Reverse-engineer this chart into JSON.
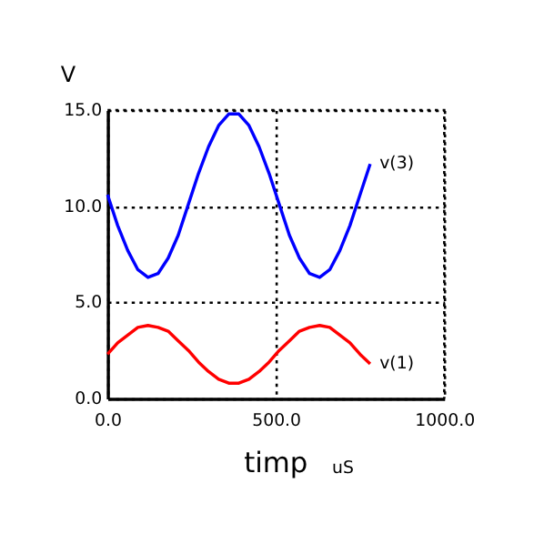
{
  "chart_data": {
    "type": "line",
    "x": [
      0,
      30,
      60,
      90,
      120,
      150,
      180,
      210,
      240,
      270,
      300,
      330,
      360,
      390,
      420,
      450,
      480,
      510,
      540,
      570,
      600,
      630,
      660,
      690,
      720,
      750,
      780
    ],
    "series": [
      {
        "name": "v(3)",
        "color": "#0000ff",
        "values": [
          10.6,
          9.0,
          7.7,
          6.7,
          6.3,
          6.5,
          7.3,
          8.5,
          10.1,
          11.7,
          13.1,
          14.2,
          14.8,
          14.8,
          14.2,
          13.1,
          11.7,
          10.1,
          8.5,
          7.3,
          6.5,
          6.3,
          6.7,
          7.7,
          9.0,
          10.6,
          12.2
        ]
      },
      {
        "name": "v(1)",
        "color": "#ff0000",
        "values": [
          2.3,
          2.9,
          3.3,
          3.7,
          3.8,
          3.7,
          3.5,
          3.0,
          2.5,
          1.9,
          1.4,
          1.0,
          0.8,
          0.8,
          1.0,
          1.4,
          1.9,
          2.5,
          3.0,
          3.5,
          3.7,
          3.8,
          3.7,
          3.3,
          2.9,
          2.3,
          1.8
        ]
      }
    ],
    "xlabel": "timp",
    "ylabel": "V",
    "annotations": [
      "uS"
    ],
    "xlim": [
      0,
      1000
    ],
    "xticks": [
      {
        "value": 0,
        "label": "0.0"
      },
      {
        "value": 500,
        "label": "500.0"
      },
      {
        "value": 1000,
        "label": "1000.0"
      }
    ],
    "ylim": [
      0,
      15
    ],
    "yticks": [
      {
        "value": 0,
        "label": "0.0"
      },
      {
        "value": 5,
        "label": "5.0"
      },
      {
        "value": 10,
        "label": "10.0"
      },
      {
        "value": 15,
        "label": "15.0"
      }
    ],
    "grid": true,
    "legend": false,
    "marker": "none",
    "line_style": "solid"
  }
}
